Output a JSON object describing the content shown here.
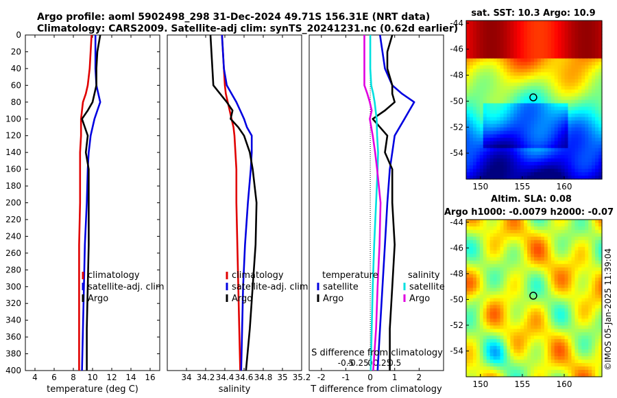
{
  "title": {
    "line1": "Argo profile: aoml 5902498_298 31-Dec-2024 49.71S 156.31E (NRT data)",
    "line2": "Climatology: CARS2009. Satellite-adj clim: synTS_20241231.nc (0.62d earlier)"
  },
  "colors": {
    "climatology": "#e00000",
    "satellite": "#0000e0",
    "argo": "#000000",
    "salinity_sat": "#00e0e0",
    "salinity_diff": "#e000e0"
  },
  "legend": {
    "climatology": "climatology",
    "satellite_adj": "satellite-adj. clim",
    "argo": "Argo",
    "temperature": "temperature",
    "salinity": "salinity",
    "satellite": "satellite"
  },
  "depth_ticks": [
    0,
    20,
    40,
    60,
    80,
    100,
    120,
    140,
    160,
    180,
    200,
    220,
    240,
    260,
    280,
    300,
    320,
    340,
    360,
    380,
    400
  ],
  "chart_data": [
    {
      "type": "line",
      "xlabel": "temperature (deg C)",
      "ylabel": "depth",
      "xlim": [
        3,
        17
      ],
      "ylim": [
        0,
        400
      ],
      "xticks": [
        "4",
        "6",
        "8",
        "10",
        "12",
        "14",
        "16"
      ],
      "xtick_values": [
        4,
        6,
        8,
        10,
        12,
        14,
        16
      ],
      "depth": [
        0,
        20,
        40,
        60,
        70,
        80,
        90,
        100,
        120,
        140,
        160,
        200,
        250,
        300,
        350,
        400
      ],
      "series": [
        {
          "name": "climatology",
          "values": [
            9.9,
            9.8,
            9.7,
            9.5,
            9.3,
            9.0,
            8.9,
            8.8,
            8.8,
            8.7,
            8.7,
            8.7,
            8.6,
            8.6,
            8.6,
            8.6
          ]
        },
        {
          "name": "satellite-adj. clim",
          "values": [
            10.3,
            10.3,
            10.3,
            10.4,
            10.6,
            10.8,
            10.5,
            10.2,
            9.8,
            9.6,
            9.5,
            9.4,
            9.2,
            9.1,
            9.0,
            8.9
          ]
        },
        {
          "name": "Argo",
          "values": [
            10.8,
            10.5,
            10.4,
            10.4,
            10.2,
            10.0,
            9.5,
            8.9,
            9.5,
            9.3,
            9.6,
            9.6,
            9.6,
            9.5,
            9.4,
            9.4
          ]
        }
      ]
    },
    {
      "type": "line",
      "xlabel": "salinity",
      "ylabel": "depth",
      "xlim": [
        33.8,
        35.2
      ],
      "ylim": [
        0,
        400
      ],
      "xticks": [
        "34",
        "34.2",
        "34.4",
        "34.6",
        "34.8",
        "35",
        "35.2"
      ],
      "xtick_values": [
        34,
        34.2,
        34.4,
        34.6,
        34.8,
        35,
        35.2
      ],
      "depth": [
        0,
        20,
        40,
        60,
        70,
        80,
        90,
        100,
        110,
        120,
        140,
        160,
        200,
        250,
        300,
        350,
        400
      ],
      "series": [
        {
          "name": "climatology",
          "values": [
            34.37,
            34.38,
            34.39,
            34.4,
            34.41,
            34.43,
            34.45,
            34.47,
            34.49,
            34.5,
            34.51,
            34.52,
            34.52,
            34.53,
            34.54,
            34.55,
            34.56
          ]
        },
        {
          "name": "satellite-adj. clim",
          "values": [
            34.37,
            34.38,
            34.39,
            34.42,
            34.47,
            34.52,
            34.56,
            34.6,
            34.63,
            34.68,
            34.68,
            34.67,
            34.64,
            34.61,
            34.59,
            34.58,
            34.57
          ]
        },
        {
          "name": "Argo",
          "values": [
            34.25,
            34.26,
            34.27,
            34.28,
            34.35,
            34.42,
            34.48,
            34.46,
            34.54,
            34.6,
            34.66,
            34.69,
            34.73,
            34.72,
            34.69,
            34.66,
            34.62
          ]
        }
      ]
    },
    {
      "type": "line",
      "xlabel": "T difference from climatology",
      "ylabel": "depth",
      "xlim": [
        -2.5,
        3
      ],
      "ylim": [
        0,
        400
      ],
      "xticks": [
        "-2",
        "-1",
        "0",
        "1",
        "2"
      ],
      "xtick_values": [
        -2,
        -1,
        0,
        1,
        2
      ],
      "secondary_axis": {
        "label": "S difference from climatology",
        "ticks": [
          "-0.5",
          "-0.25",
          "0",
          "0.25",
          "0.5"
        ],
        "tick_values": [
          -0.5,
          -0.25,
          0,
          0.25,
          0.5
        ]
      },
      "depth": [
        0,
        20,
        40,
        60,
        70,
        80,
        90,
        100,
        120,
        140,
        160,
        200,
        250,
        300,
        350,
        400
      ],
      "series": [
        {
          "name": "temperature satellite",
          "values": [
            0.4,
            0.5,
            0.6,
            0.9,
            1.3,
            1.8,
            1.6,
            1.4,
            1.0,
            0.9,
            0.8,
            0.7,
            0.6,
            0.5,
            0.4,
            0.3
          ]
        },
        {
          "name": "temperature Argo",
          "values": [
            0.9,
            0.7,
            0.7,
            0.9,
            0.9,
            1.0,
            0.6,
            0.1,
            0.7,
            0.6,
            0.9,
            0.9,
            1.0,
            0.9,
            0.8,
            0.8
          ]
        },
        {
          "name": "salinity satellite",
          "values": [
            0.0,
            0.0,
            0.0,
            0.02,
            0.06,
            0.09,
            0.11,
            0.13,
            0.14,
            0.16,
            0.15,
            0.12,
            0.08,
            0.05,
            0.03,
            0.01
          ]
        },
        {
          "name": "salinity Argo",
          "values": [
            -0.12,
            -0.12,
            -0.12,
            -0.12,
            -0.06,
            -0.01,
            0.03,
            -0.01,
            0.05,
            0.1,
            0.14,
            0.21,
            0.19,
            0.15,
            0.12,
            0.06
          ]
        }
      ]
    }
  ],
  "maps": {
    "sst": {
      "title": "sat. SST: 10.3 Argo: 10.9",
      "lat_ticks": [
        "-44",
        "-46",
        "-48",
        "-50",
        "-52",
        "-54"
      ],
      "lon_ticks": [
        "150",
        "155",
        "160"
      ],
      "lat_values": [
        -44,
        -46,
        -48,
        -50,
        -52,
        -54
      ],
      "lon_values": [
        150,
        155,
        160
      ],
      "lat_range": [
        -56,
        -43.8
      ],
      "lon_range": [
        148.3,
        164.5
      ],
      "profile": [
        156.31,
        -49.71
      ]
    },
    "sla": {
      "title1": "Altim. SLA: 0.08",
      "title2": "Argo h1000: -0.0079 h2000: -0.07",
      "lat_ticks": [
        "-44",
        "-46",
        "-48",
        "-50",
        "-52",
        "-54"
      ],
      "lon_ticks": [
        "150",
        "155",
        "160"
      ],
      "lat_values": [
        -44,
        -46,
        -48,
        -50,
        -52,
        -54
      ],
      "lon_values": [
        150,
        155,
        160
      ],
      "lat_range": [
        -56,
        -43.8
      ],
      "lon_range": [
        148.3,
        164.5
      ],
      "profile": [
        156.31,
        -49.71
      ]
    }
  },
  "stamp": "©IMOS 05-Jan-2025 11:39:04"
}
